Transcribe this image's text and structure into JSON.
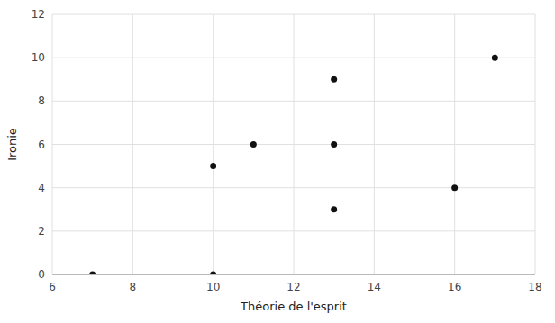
{
  "chart_data": {
    "type": "scatter",
    "x": [
      7,
      10,
      10,
      11,
      13,
      13,
      13,
      16,
      17
    ],
    "values": [
      0,
      0,
      5,
      6,
      9,
      6,
      3,
      4,
      10
    ],
    "xlabel": "Théorie de l'esprit",
    "ylabel": "Ironie",
    "xlim": [
      6,
      18
    ],
    "ylim": [
      0,
      12
    ],
    "xticks": [
      6,
      8,
      10,
      12,
      14,
      16,
      18
    ],
    "yticks": [
      0,
      2,
      4,
      6,
      8,
      10,
      12
    ],
    "color": "#111111",
    "grid": true
  }
}
